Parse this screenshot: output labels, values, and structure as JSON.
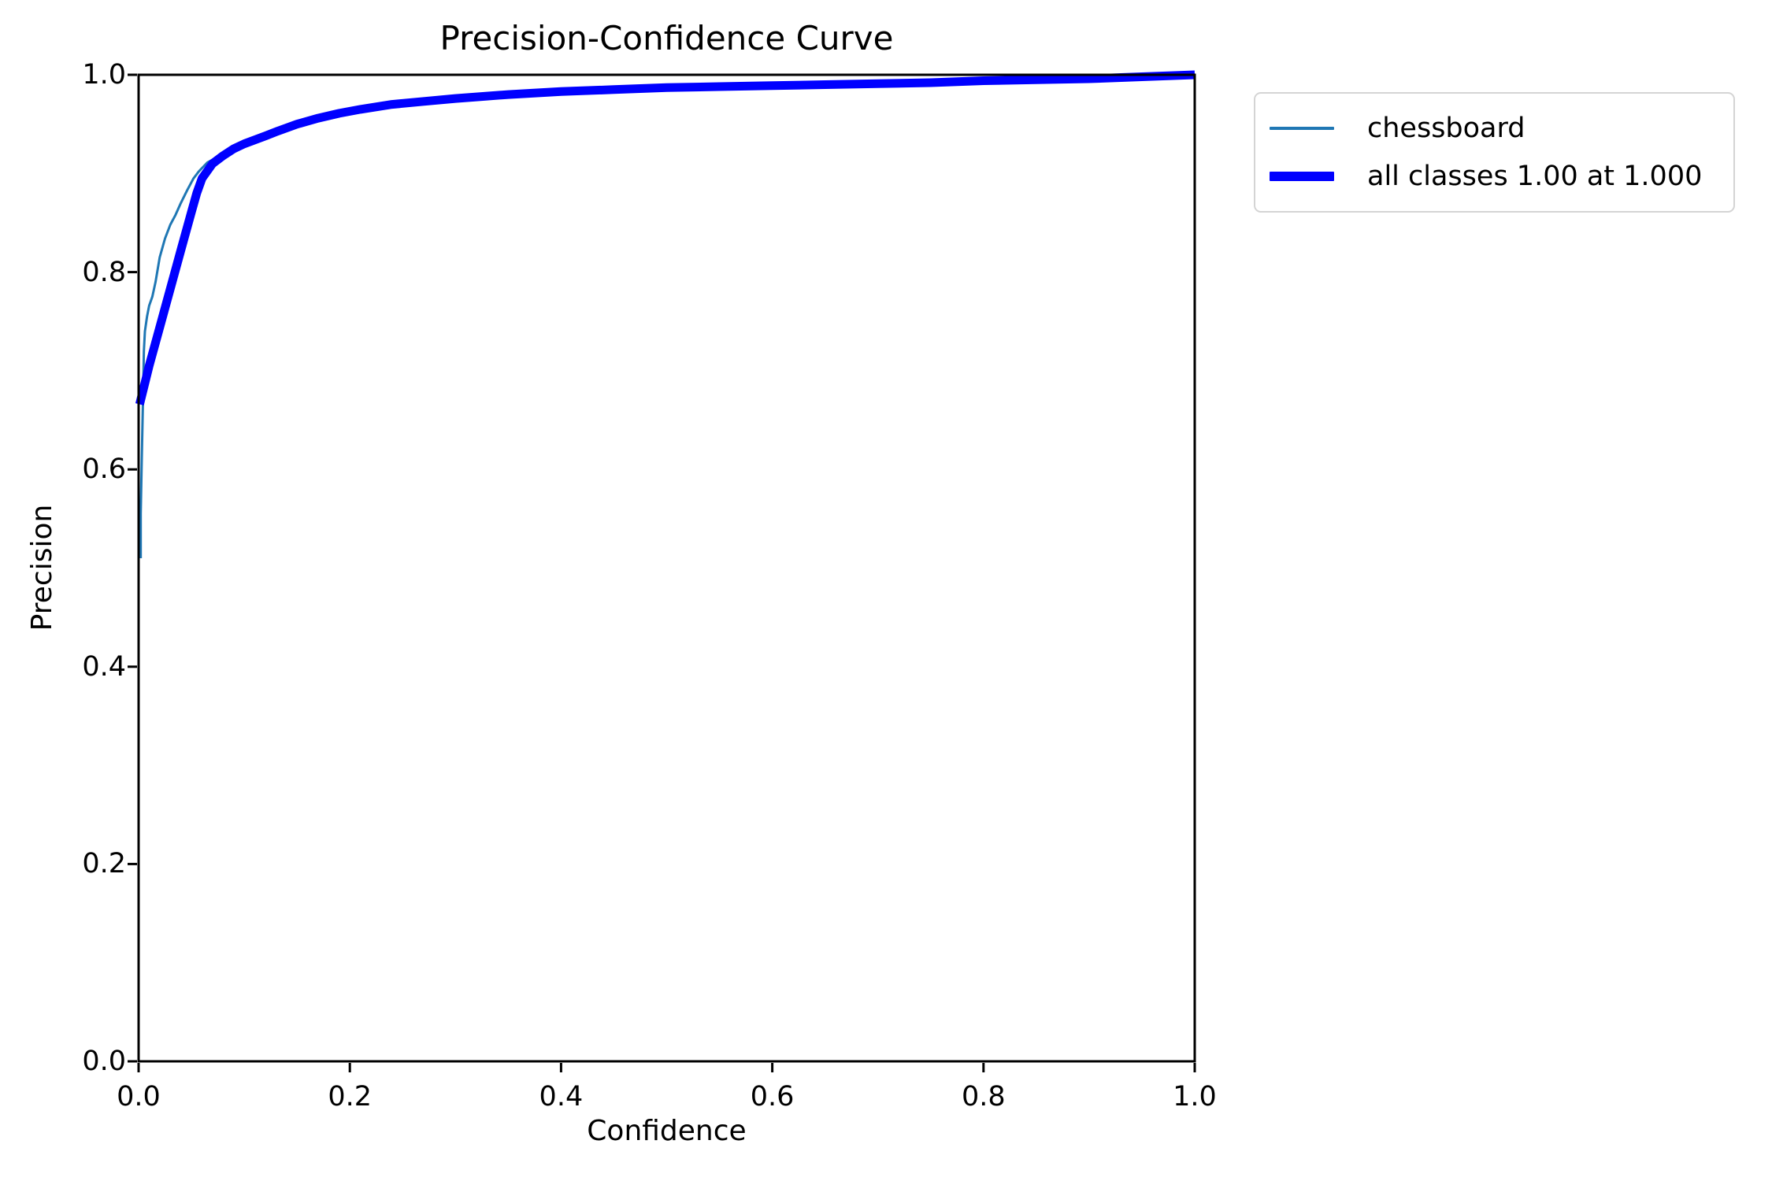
{
  "figure": {
    "background": "#ffffff",
    "spine_color": "#000000"
  },
  "chart_data": {
    "type": "line",
    "title": "Precision-Confidence Curve",
    "xlabel": "Confidence",
    "ylabel": "Precision",
    "xlim": [
      0.0,
      1.0
    ],
    "ylim": [
      0.0,
      1.0
    ],
    "grid": false,
    "legend_position": "outside-upper-right",
    "x_ticks": [
      "0.0",
      "0.2",
      "0.4",
      "0.6",
      "0.8",
      "1.0"
    ],
    "y_ticks": [
      "0.0",
      "0.2",
      "0.4",
      "0.6",
      "0.8",
      "1.0"
    ],
    "series": [
      {
        "name": "chessboard",
        "color": "#1f77b4",
        "linewidth": 3,
        "points": [
          [
            0.002,
            0.51
          ],
          [
            0.002,
            0.555
          ],
          [
            0.003,
            0.61
          ],
          [
            0.004,
            0.665
          ],
          [
            0.005,
            0.72
          ],
          [
            0.006,
            0.74
          ],
          [
            0.008,
            0.755
          ],
          [
            0.01,
            0.766
          ],
          [
            0.013,
            0.775
          ],
          [
            0.016,
            0.79
          ],
          [
            0.02,
            0.815
          ],
          [
            0.025,
            0.834
          ],
          [
            0.03,
            0.848
          ],
          [
            0.035,
            0.858
          ],
          [
            0.04,
            0.87
          ],
          [
            0.046,
            0.883
          ],
          [
            0.052,
            0.895
          ],
          [
            0.057,
            0.902
          ],
          [
            0.065,
            0.911
          ],
          [
            0.072,
            0.915
          ],
          [
            0.08,
            0.918
          ],
          [
            0.087,
            0.924
          ],
          [
            0.095,
            0.929
          ],
          [
            0.11,
            0.935
          ],
          [
            0.12,
            0.94
          ],
          [
            0.132,
            0.946
          ],
          [
            0.15,
            0.952
          ],
          [
            0.17,
            0.958
          ],
          [
            0.19,
            0.962
          ],
          [
            0.21,
            0.966
          ],
          [
            0.24,
            0.97
          ],
          [
            0.27,
            0.974
          ],
          [
            0.3,
            0.977
          ],
          [
            0.35,
            0.981
          ],
          [
            0.4,
            0.984
          ],
          [
            0.45,
            0.986
          ],
          [
            0.5,
            0.988
          ],
          [
            0.55,
            0.989
          ],
          [
            0.6,
            0.99
          ],
          [
            0.65,
            0.991
          ],
          [
            0.7,
            0.992
          ],
          [
            0.75,
            0.993
          ],
          [
            0.8,
            0.994
          ],
          [
            0.85,
            0.995
          ],
          [
            0.9,
            0.997
          ],
          [
            0.95,
            0.998
          ],
          [
            1.0,
            1.0
          ]
        ]
      },
      {
        "name": "all classes 1.00 at 1.000",
        "color": "#0000ff",
        "linewidth": 11,
        "points": [
          [
            0.001,
            0.666
          ],
          [
            0.01,
            0.705
          ],
          [
            0.02,
            0.744
          ],
          [
            0.03,
            0.783
          ],
          [
            0.04,
            0.822
          ],
          [
            0.05,
            0.861
          ],
          [
            0.055,
            0.88
          ],
          [
            0.06,
            0.895
          ],
          [
            0.07,
            0.91
          ],
          [
            0.08,
            0.918
          ],
          [
            0.09,
            0.925
          ],
          [
            0.1,
            0.93
          ],
          [
            0.11,
            0.934
          ],
          [
            0.12,
            0.938
          ],
          [
            0.132,
            0.943
          ],
          [
            0.15,
            0.95
          ],
          [
            0.17,
            0.956
          ],
          [
            0.19,
            0.961
          ],
          [
            0.21,
            0.965
          ],
          [
            0.24,
            0.97
          ],
          [
            0.27,
            0.973
          ],
          [
            0.3,
            0.976
          ],
          [
            0.35,
            0.98
          ],
          [
            0.4,
            0.983
          ],
          [
            0.45,
            0.985
          ],
          [
            0.5,
            0.987
          ],
          [
            0.55,
            0.988
          ],
          [
            0.6,
            0.989
          ],
          [
            0.65,
            0.99
          ],
          [
            0.7,
            0.991
          ],
          [
            0.75,
            0.992
          ],
          [
            0.8,
            0.994
          ],
          [
            0.85,
            0.995
          ],
          [
            0.9,
            0.996
          ],
          [
            0.95,
            0.998
          ],
          [
            1.0,
            1.0
          ]
        ]
      }
    ]
  }
}
